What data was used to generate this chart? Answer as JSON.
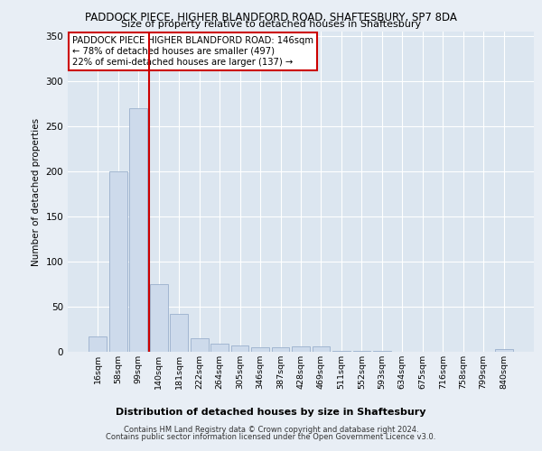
{
  "title1": "PADDOCK PIECE, HIGHER BLANDFORD ROAD, SHAFTESBURY, SP7 8DA",
  "title2": "Size of property relative to detached houses in Shaftesbury",
  "xlabel": "Distribution of detached houses by size in Shaftesbury",
  "ylabel": "Number of detached properties",
  "categories": [
    "16sqm",
    "58sqm",
    "99sqm",
    "140sqm",
    "181sqm",
    "222sqm",
    "264sqm",
    "305sqm",
    "346sqm",
    "387sqm",
    "428sqm",
    "469sqm",
    "511sqm",
    "552sqm",
    "593sqm",
    "634sqm",
    "675sqm",
    "716sqm",
    "758sqm",
    "799sqm",
    "840sqm"
  ],
  "values": [
    17,
    200,
    270,
    75,
    42,
    15,
    9,
    7,
    5,
    5,
    6,
    6,
    1,
    1,
    1,
    0,
    0,
    0,
    0,
    0,
    3
  ],
  "bar_color": "#cddaeb",
  "bar_edgecolor": "#9ab0cc",
  "bar_linewidth": 0.6,
  "red_line_color": "#cc0000",
  "annotation_text": "PADDOCK PIECE HIGHER BLANDFORD ROAD: 146sqm\n← 78% of detached houses are smaller (497)\n22% of semi-detached houses are larger (137) →",
  "annotation_box_color": "#ffffff",
  "annotation_box_edgecolor": "#cc0000",
  "ylim": [
    0,
    355
  ],
  "yticks": [
    0,
    50,
    100,
    150,
    200,
    250,
    300,
    350
  ],
  "background_color": "#e8eef5",
  "plot_background_color": "#dce6f0",
  "grid_color": "#ffffff",
  "footer_line1": "Contains HM Land Registry data © Crown copyright and database right 2024.",
  "footer_line2": "Contains public sector information licensed under the Open Government Licence v3.0."
}
